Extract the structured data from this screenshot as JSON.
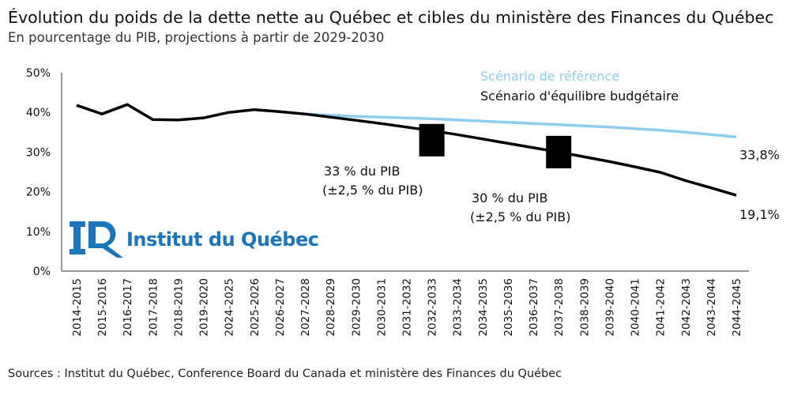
{
  "chart_data": {
    "type": "line",
    "title": "Évolution du poids de la dette nette au Québec et cibles du ministère des Finances du Québec",
    "subtitle": "En pourcentage du PIB, projections à partir de 2029-2030",
    "xlabel": "",
    "ylabel": "",
    "ylim": [
      0,
      50
    ],
    "yticks": [
      "0%",
      "10%",
      "20%",
      "30%",
      "40%",
      "50%"
    ],
    "ytick_values": [
      0,
      10,
      20,
      30,
      40,
      50
    ],
    "grid": false,
    "legend_placement": "top-right",
    "categories": [
      "2014-2015",
      "2015-2016",
      "2016-2017",
      "2017-2018",
      "2018-2019",
      "2019-2020",
      "2024-2025",
      "2025-2026",
      "2026-2027",
      "2027-2028",
      "2028-2029",
      "2029-2030",
      "2030-2031",
      "2031-2032",
      "2032-2033",
      "2033-2034",
      "2034-2035",
      "2035-2036",
      "2036-2037",
      "2037-2038",
      "2038-2039",
      "2039-2040",
      "2040-2041",
      "2041-2042",
      "2042-2043",
      "2043-2044",
      "2044-2045"
    ],
    "series": [
      {
        "name": "Scénario de référence",
        "color": "#8fcdf0",
        "values": [
          null,
          null,
          null,
          null,
          null,
          null,
          null,
          null,
          null,
          39.6,
          39.3,
          39.0,
          38.8,
          38.6,
          38.4,
          38.1,
          37.8,
          37.5,
          37.2,
          36.9,
          36.6,
          36.3,
          35.9,
          35.5,
          35.0,
          34.4,
          33.8
        ],
        "end_label": "33,8%"
      },
      {
        "name": "Scénario d'équilibre budgétaire",
        "color": "#000000",
        "values": [
          41.8,
          39.6,
          42.0,
          38.2,
          38.1,
          38.6,
          40.0,
          40.7,
          40.2,
          39.6,
          38.8,
          38.0,
          37.2,
          36.3,
          35.4,
          34.4,
          33.3,
          32.2,
          31.1,
          30.0,
          28.8,
          27.6,
          26.3,
          24.9,
          22.8,
          21.0,
          19.1
        ],
        "end_label": "19,1%"
      }
    ],
    "targets": [
      {
        "category": "2032-2033",
        "value": 33,
        "tolerance": 2.5,
        "label_line1": "33 % du PIB",
        "label_line2": "(±2,5 % du PIB)"
      },
      {
        "category": "2037-2038",
        "value": 30,
        "tolerance": 2.5,
        "label_line1": "30 % du PIB",
        "label_line2": "(±2,5 % du PIB)"
      }
    ]
  },
  "logo": {
    "text": "Institut du Québec",
    "color": "#1a75bb"
  },
  "source": "Sources : Institut du Québec, Conference Board du Canada et ministère des Finances du Québec"
}
